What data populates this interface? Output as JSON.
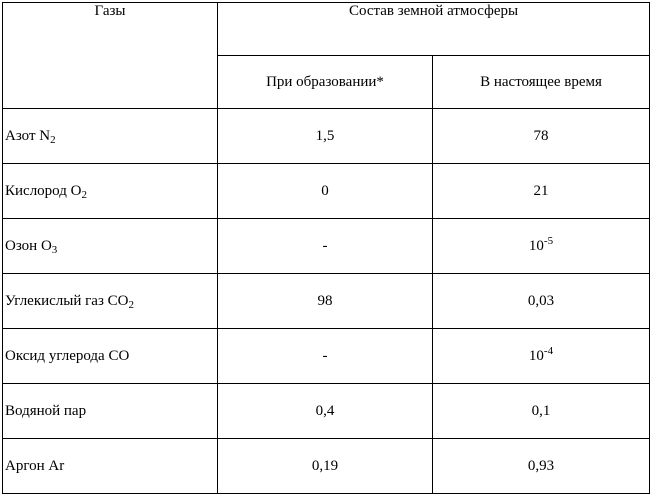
{
  "header": {
    "gases": "Газы",
    "composition": "Состав земной атмосферы",
    "at_formation": "При образовании*",
    "present": "В настоящее время"
  },
  "rows": [
    {
      "gas": "Азот N",
      "gas_sub": "2",
      "formation": "1,5",
      "present": "78",
      "present_sup": ""
    },
    {
      "gas": "Кислород O",
      "gas_sub": "2",
      "formation": "0",
      "present": "21",
      "present_sup": ""
    },
    {
      "gas": "Озон O",
      "gas_sub": "3",
      "formation": "-",
      "present": "10",
      "present_sup": "-5"
    },
    {
      "gas": "Углекислый газ CO",
      "gas_sub": "2",
      "formation": "98",
      "present": "0,03",
      "present_sup": ""
    },
    {
      "gas": "Оксид углерода CO",
      "gas_sub": "",
      "formation": "-",
      "present": "10",
      "present_sup": "-4"
    },
    {
      "gas": "Водяной пар",
      "gas_sub": "",
      "formation": "0,4",
      "present": "0,1",
      "present_sup": ""
    },
    {
      "gas": "Аргон Ar",
      "gas_sub": "",
      "formation": "0,19",
      "present": "0,93",
      "present_sup": ""
    }
  ]
}
